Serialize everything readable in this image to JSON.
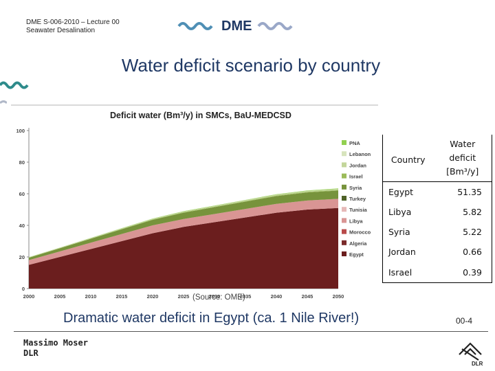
{
  "header": {
    "line1": "DME S-006-2010 – Lecture 00",
    "line2": "Seawater Desalination"
  },
  "logo": {
    "text": "DME",
    "color": "#1f3864",
    "wave_color": "#1f3864"
  },
  "slide_title": "Water deficit scenario by country",
  "chart_data": {
    "type": "area",
    "title": "Deficit water (Bm³/y) in SMCs, BaU-MEDCSD",
    "xlabel": "",
    "ylabel": "",
    "x": [
      2000,
      2005,
      2010,
      2015,
      2020,
      2025,
      2030,
      2035,
      2040,
      2045,
      2050
    ],
    "x_tick_labels": [
      "2000",
      "2005",
      "2010",
      "2015",
      "2020",
      "2025",
      "2030",
      "2035",
      "2040",
      "2045",
      "2050"
    ],
    "y_ticks": [
      0,
      20,
      40,
      60,
      80,
      100
    ],
    "ylim": [
      0,
      100
    ],
    "stacked": true,
    "legend_position": "right",
    "series": [
      {
        "name": "Egypt",
        "color": "#6b1e1e",
        "values": [
          15,
          20,
          25,
          30,
          35,
          39,
          42,
          45,
          48,
          50,
          51
        ]
      },
      {
        "name": "Algeria",
        "color": "#7a2a2a",
        "values": [
          0,
          0,
          0,
          0,
          0,
          0,
          0,
          0,
          0,
          0,
          0
        ]
      },
      {
        "name": "Morocco",
        "color": "#b84a4a",
        "values": [
          0,
          0,
          0,
          0,
          0,
          0,
          0,
          0,
          0,
          0,
          0
        ]
      },
      {
        "name": "Libya",
        "color": "#d99594",
        "values": [
          3,
          3.5,
          4,
          4.5,
          5,
          5,
          5.2,
          5.4,
          5.6,
          5.7,
          5.8
        ]
      },
      {
        "name": "Tunisia",
        "color": "#e6b9b8",
        "values": [
          0,
          0,
          0,
          0,
          0,
          0,
          0,
          0,
          0,
          0,
          0
        ]
      },
      {
        "name": "Turkey",
        "color": "#4f6228",
        "values": [
          0,
          0,
          0,
          0,
          0,
          0,
          0,
          0,
          0,
          0,
          0
        ]
      },
      {
        "name": "Syria",
        "color": "#77933c",
        "values": [
          1.5,
          2,
          2.5,
          3,
          3.5,
          4,
          4.3,
          4.6,
          4.9,
          5.1,
          5.2
        ]
      },
      {
        "name": "Israel",
        "color": "#9bbb59",
        "values": [
          0.1,
          0.1,
          0.15,
          0.2,
          0.25,
          0.3,
          0.3,
          0.35,
          0.35,
          0.38,
          0.39
        ]
      },
      {
        "name": "Jordan",
        "color": "#c3d69b",
        "values": [
          0.2,
          0.25,
          0.3,
          0.35,
          0.4,
          0.45,
          0.5,
          0.55,
          0.6,
          0.63,
          0.66
        ]
      },
      {
        "name": "Lebanon",
        "color": "#d7e4bd",
        "values": [
          0,
          0,
          0,
          0,
          0,
          0,
          0,
          0,
          0,
          0,
          0
        ]
      },
      {
        "name": "PNA",
        "color": "#92d050",
        "values": [
          0.1,
          0.1,
          0.1,
          0.15,
          0.15,
          0.2,
          0.2,
          0.2,
          0.25,
          0.25,
          0.3
        ]
      }
    ],
    "legend_order": [
      "PNA",
      "Lebanon",
      "Jordan",
      "Israel",
      "Syria",
      "Turkey",
      "Tunisia",
      "Libya",
      "Morocco",
      "Algeria",
      "Egypt"
    ],
    "grid": false
  },
  "table": {
    "header_country": "Country",
    "header_deficit_line1": "Water",
    "header_deficit_line2": "deficit",
    "header_deficit_unit": "[Bm³/y]",
    "rows": [
      {
        "country": "Egypt",
        "value": "51.35"
      },
      {
        "country": "Libya",
        "value": "5.82"
      },
      {
        "country": "Syria",
        "value": "5.22"
      },
      {
        "country": "Jordan",
        "value": "0.66"
      },
      {
        "country": "Israel",
        "value": "0.39"
      }
    ]
  },
  "source": "(Source: OME)",
  "subtitle": "Dramatic water deficit in Egypt (ca. 1 Nile River!)",
  "page_number": "00-4",
  "footer": {
    "name": "Massimo Moser",
    "org": "DLR"
  },
  "dlr_logo_text": "DLR"
}
